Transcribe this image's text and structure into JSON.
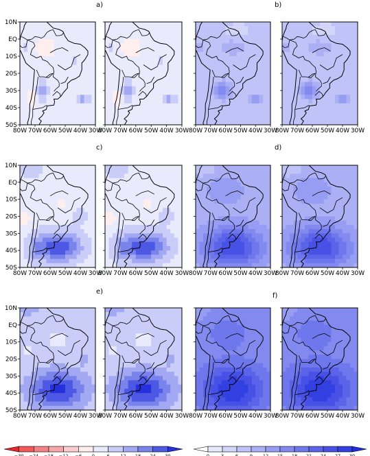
{
  "chart_data": {
    "type": "heatmap",
    "panel_labels": [
      "a)",
      "b)",
      "c)",
      "d)",
      "e)",
      "f)"
    ],
    "lon_ticks": [
      "80W",
      "70W",
      "60W",
      "50W",
      "40W",
      "30W"
    ],
    "lat_ticks": [
      "10N",
      "EQ",
      "10S",
      "20S",
      "30S",
      "40S",
      "50S"
    ],
    "lon_range": [
      -80,
      -30
    ],
    "lat_range": [
      -50,
      10
    ],
    "diverging_colorbar": {
      "levels": [
        -30,
        -24,
        -18,
        -12,
        -6,
        0,
        6,
        12,
        18,
        24,
        30
      ],
      "labels": [
        "−30",
        "−24",
        "−18",
        "−12",
        "−6",
        "0",
        "6",
        "12",
        "18",
        "24",
        "30"
      ],
      "colors": [
        "#e8282c",
        "#f0585a",
        "#f58284",
        "#f8a7a8",
        "#fbcccd",
        "#ffeeee",
        "#e9ebfd",
        "#c9cdf8",
        "#a2a8f2",
        "#7a82ec",
        "#4d58e4",
        "#2431dc"
      ]
    },
    "sequential_colorbar": {
      "levels": [
        0,
        3,
        6,
        9,
        12,
        15,
        18,
        21,
        24,
        27,
        30
      ],
      "labels": [
        "0",
        "3",
        "6",
        "9",
        "12",
        "15",
        "18",
        "21",
        "24",
        "27",
        "30"
      ],
      "colors": [
        "#ffffff",
        "#e8e9fd",
        "#d3d6fb",
        "#bfc3f8",
        "#abb0f5",
        "#979df2",
        "#838aef",
        "#6f77ec",
        "#5b64e8",
        "#4751e5",
        "#3340e1",
        "#1f2ddd"
      ]
    }
  }
}
